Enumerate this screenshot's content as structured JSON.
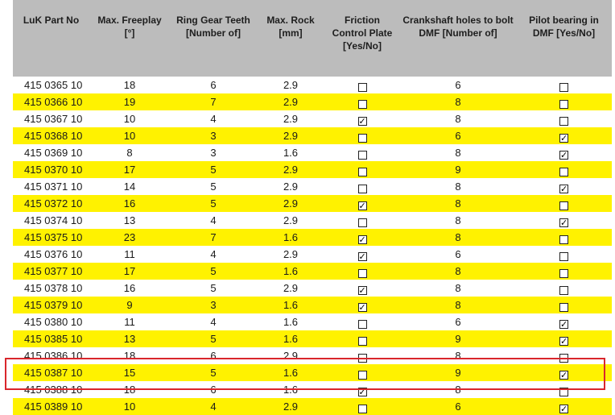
{
  "table": {
    "headers": [
      "LuK Part No",
      "Max. Freeplay\n[°]",
      "Ring Gear Teeth\n[Number of]",
      "Max. Rock\n[mm]",
      "Friction\nControl Plate\n[Yes/No]",
      "Crankshaft holes to bolt\nDMF [Number of]",
      "Pilot bearing in\nDMF [Yes/No]"
    ],
    "rows": [
      {
        "part": "415 0365 10",
        "freeplay": "18",
        "teeth": "6",
        "rock": "2.9",
        "friction": false,
        "holes": "6",
        "pilot": false,
        "yellow": false
      },
      {
        "part": "415 0366 10",
        "freeplay": "19",
        "teeth": "7",
        "rock": "2.9",
        "friction": false,
        "holes": "8",
        "pilot": false,
        "yellow": true
      },
      {
        "part": "415 0367 10",
        "freeplay": "10",
        "teeth": "4",
        "rock": "2.9",
        "friction": true,
        "holes": "8",
        "pilot": false,
        "yellow": false
      },
      {
        "part": "415 0368 10",
        "freeplay": "10",
        "teeth": "3",
        "rock": "2.9",
        "friction": false,
        "holes": "6",
        "pilot": true,
        "yellow": true
      },
      {
        "part": "415 0369 10",
        "freeplay": "8",
        "teeth": "3",
        "rock": "1.6",
        "friction": false,
        "holes": "8",
        "pilot": true,
        "yellow": false
      },
      {
        "part": "415 0370 10",
        "freeplay": "17",
        "teeth": "5",
        "rock": "2.9",
        "friction": false,
        "holes": "9",
        "pilot": false,
        "yellow": true
      },
      {
        "part": "415 0371 10",
        "freeplay": "14",
        "teeth": "5",
        "rock": "2.9",
        "friction": false,
        "holes": "8",
        "pilot": true,
        "yellow": false
      },
      {
        "part": "415 0372 10",
        "freeplay": "16",
        "teeth": "5",
        "rock": "2.9",
        "friction": true,
        "holes": "8",
        "pilot": false,
        "yellow": true
      },
      {
        "part": "415 0374 10",
        "freeplay": "13",
        "teeth": "4",
        "rock": "2.9",
        "friction": false,
        "holes": "8",
        "pilot": true,
        "yellow": false
      },
      {
        "part": "415 0375 10",
        "freeplay": "23",
        "teeth": "7",
        "rock": "1.6",
        "friction": true,
        "holes": "8",
        "pilot": false,
        "yellow": true
      },
      {
        "part": "415 0376 10",
        "freeplay": "11",
        "teeth": "4",
        "rock": "2.9",
        "friction": true,
        "holes": "6",
        "pilot": false,
        "yellow": false
      },
      {
        "part": "415 0377 10",
        "freeplay": "17",
        "teeth": "5",
        "rock": "1.6",
        "friction": false,
        "holes": "8",
        "pilot": false,
        "yellow": true
      },
      {
        "part": "415 0378 10",
        "freeplay": "16",
        "teeth": "5",
        "rock": "2.9",
        "friction": true,
        "holes": "8",
        "pilot": false,
        "yellow": false
      },
      {
        "part": "415 0379 10",
        "freeplay": "9",
        "teeth": "3",
        "rock": "1.6",
        "friction": true,
        "holes": "8",
        "pilot": false,
        "yellow": true
      },
      {
        "part": "415 0380 10",
        "freeplay": "11",
        "teeth": "4",
        "rock": "1.6",
        "friction": false,
        "holes": "6",
        "pilot": true,
        "yellow": false
      },
      {
        "part": "415 0385 10",
        "freeplay": "13",
        "teeth": "5",
        "rock": "1.6",
        "friction": false,
        "holes": "9",
        "pilot": true,
        "yellow": true
      },
      {
        "part": "415 0386 10",
        "freeplay": "18",
        "teeth": "6",
        "rock": "2.9",
        "friction": false,
        "holes": "8",
        "pilot": false,
        "yellow": false
      },
      {
        "part": "415 0387 10",
        "freeplay": "15",
        "teeth": "5",
        "rock": "1.6",
        "friction": false,
        "holes": "9",
        "pilot": true,
        "yellow": true
      },
      {
        "part": "415 0388 10",
        "freeplay": "18",
        "teeth": "6",
        "rock": "1.6",
        "friction": true,
        "holes": "8",
        "pilot": false,
        "yellow": false
      },
      {
        "part": "415 0389 10",
        "freeplay": "10",
        "teeth": "4",
        "rock": "2.9",
        "friction": false,
        "holes": "6",
        "pilot": true,
        "yellow": true
      }
    ]
  },
  "colors": {
    "header_bg": "#bcbcbc",
    "stripe": "#fff200",
    "highlight_box": "#d9262c"
  },
  "highlighted_part": "415 0387 10"
}
